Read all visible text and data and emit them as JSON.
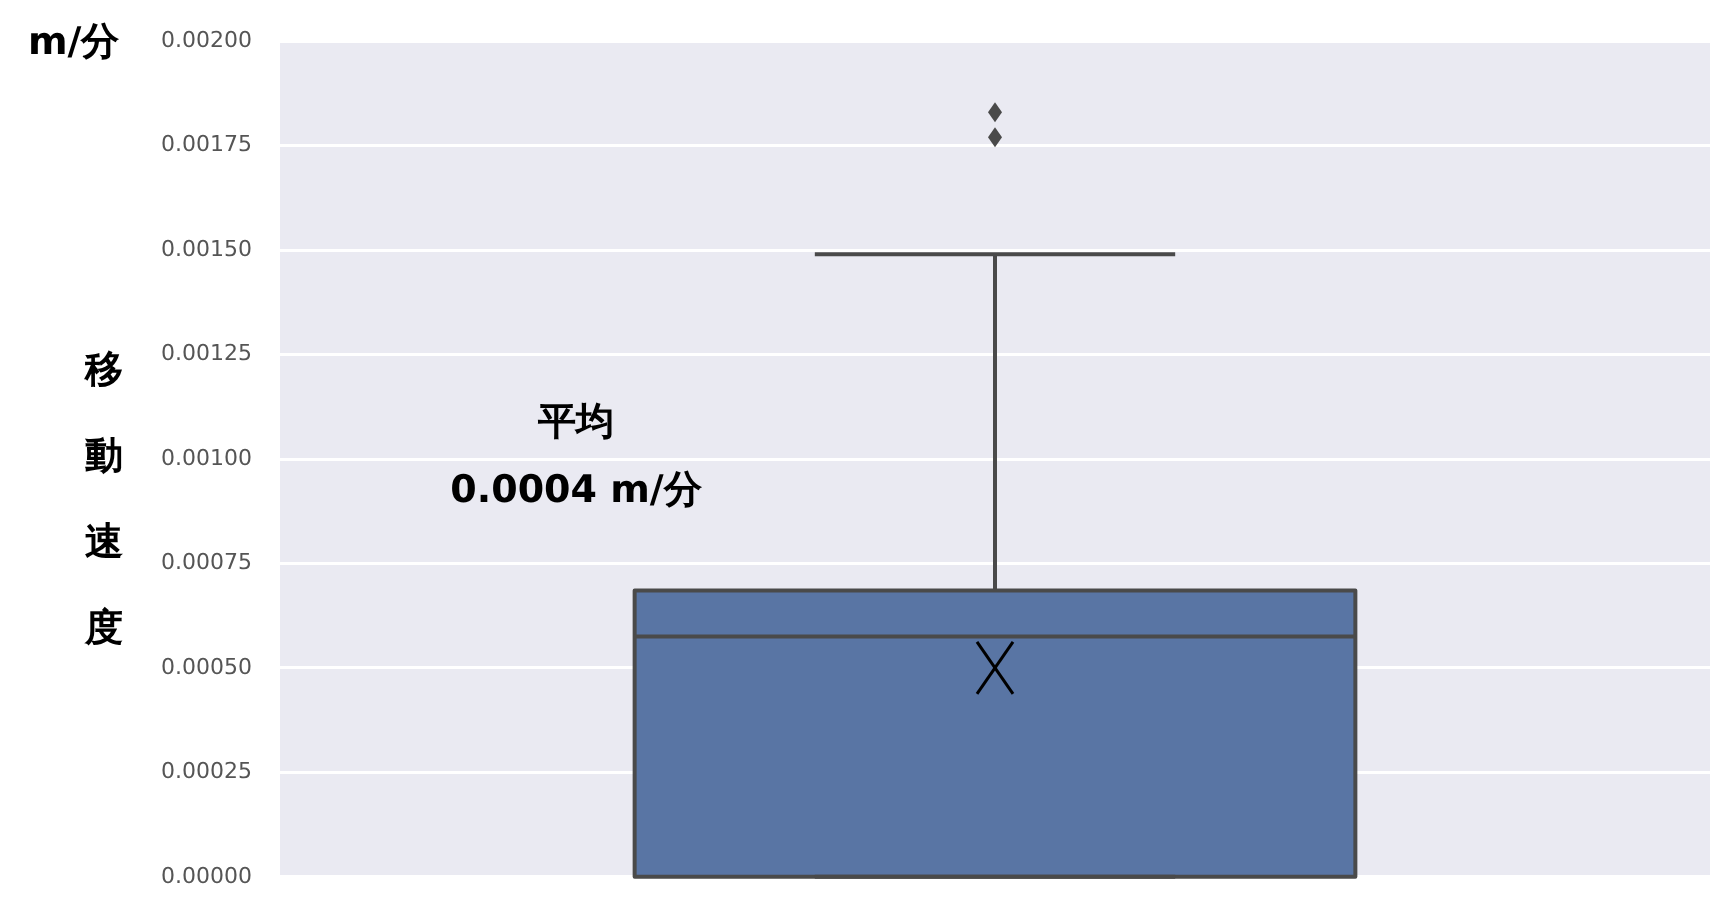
{
  "chart_data": {
    "type": "box",
    "categories": [
      null
    ],
    "color": "#5975a4",
    "boxes": [
      {
        "low": 0,
        "q1": 0,
        "median": 0.000575,
        "q3": 0.000685,
        "high": 0.00149,
        "mean": 0.0005,
        "outliers": [
          0.00183,
          0.00177
        ]
      }
    ],
    "ylim": [
      0,
      0.002
    ],
    "yticks": [
      {
        "value": 0,
        "label": "0.00000"
      },
      {
        "value": 0.00025,
        "label": "0.00025"
      },
      {
        "value": 0.0005,
        "label": "0.00050"
      },
      {
        "value": 0.00075,
        "label": "0.00075"
      },
      {
        "value": 0.001,
        "label": "0.00100"
      },
      {
        "value": 0.00125,
        "label": "0.00125"
      },
      {
        "value": 0.0015,
        "label": "0.00150"
      },
      {
        "value": 0.00175,
        "label": "0.00175"
      },
      {
        "value": 0.002,
        "label": "0.00200"
      }
    ],
    "ylabel": "移動速度",
    "grid": "y",
    "annotations": [
      "m/分",
      "平均",
      "0.0004 m/分"
    ]
  }
}
